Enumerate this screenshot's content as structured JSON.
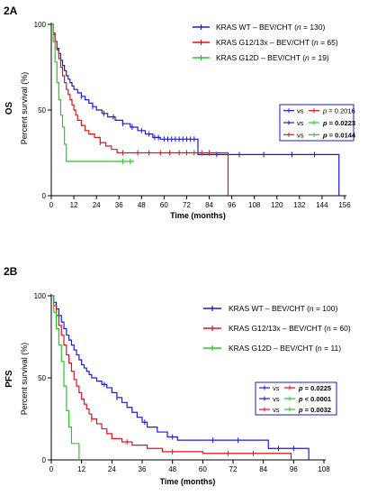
{
  "colors": {
    "series1": "#1a1adc",
    "series2": "#e0141e",
    "series3": "#22cc22",
    "axis": "#000000",
    "compare_box": "#1a1adc"
  },
  "chart_data": [
    {
      "type": "line",
      "step": true,
      "panel_label": "2A",
      "title": "",
      "outcome_label": "OS",
      "xlabel": "Time (months)",
      "ylabel": "Percent survival (%)",
      "xlim": [
        0,
        156
      ],
      "ylim": [
        0,
        100
      ],
      "xticks": [
        0,
        12,
        24,
        36,
        48,
        60,
        72,
        84,
        96,
        108,
        120,
        132,
        144,
        156
      ],
      "yticks": [
        0,
        50,
        100
      ],
      "legend_position": "top-right",
      "series": [
        {
          "name_prefix": "KRAS WT – BEV/CHT  (",
          "n_label": "n",
          "n_value": " = 130)",
          "color": "#1a1adc",
          "points": [
            [
              0,
              100
            ],
            [
              1,
              94
            ],
            [
              2,
              90
            ],
            [
              3,
              86
            ],
            [
              4,
              83
            ],
            [
              5,
              79
            ],
            [
              6,
              76
            ],
            [
              7,
              73
            ],
            [
              8,
              70
            ],
            [
              9,
              68
            ],
            [
              10,
              66
            ],
            [
              11,
              64
            ],
            [
              12,
              62
            ],
            [
              14,
              60
            ],
            [
              16,
              58
            ],
            [
              18,
              56
            ],
            [
              20,
              54
            ],
            [
              22,
              52
            ],
            [
              24,
              50
            ],
            [
              27,
              48
            ],
            [
              30,
              46
            ],
            [
              34,
              44
            ],
            [
              38,
              42
            ],
            [
              42,
              40
            ],
            [
              46,
              38
            ],
            [
              50,
              36
            ],
            [
              54,
              34
            ],
            [
              58,
              33
            ],
            [
              66,
              33
            ],
            [
              76,
              33
            ],
            [
              78,
              24
            ],
            [
              153,
              24
            ],
            [
              153,
              0
            ]
          ],
          "censor_x": [
            16,
            22,
            28,
            33,
            38,
            43,
            48,
            52,
            55,
            57,
            60,
            62,
            64,
            66,
            68,
            70,
            72,
            74,
            76,
            88,
            100,
            113,
            128,
            140
          ]
        },
        {
          "name_prefix": "KRAS G12/13x – BEV/CHT (",
          "n_label": "n",
          "n_value": " = 65)",
          "color": "#e0141e",
          "points": [
            [
              0,
              100
            ],
            [
              1,
              95
            ],
            [
              2,
              90
            ],
            [
              3,
              85
            ],
            [
              4,
              80
            ],
            [
              5,
              75
            ],
            [
              6,
              70
            ],
            [
              7,
              66
            ],
            [
              8,
              62
            ],
            [
              9,
              59
            ],
            [
              10,
              56
            ],
            [
              11,
              53
            ],
            [
              12,
              50
            ],
            [
              13,
              47
            ],
            [
              14,
              44
            ],
            [
              16,
              41
            ],
            [
              18,
              38
            ],
            [
              20,
              36
            ],
            [
              23,
              34
            ],
            [
              26,
              31
            ],
            [
              29,
              29
            ],
            [
              32,
              27
            ],
            [
              35,
              25
            ],
            [
              94,
              25
            ],
            [
              94,
              0
            ]
          ],
          "censor_x": [
            26,
            38,
            46,
            52,
            58,
            63,
            68,
            72,
            76,
            80,
            84
          ]
        },
        {
          "name_prefix": "KRAS G12D – BEV/CHT (",
          "n_label": "n",
          "n_value": " = 19)",
          "color": "#22cc22",
          "points": [
            [
              0,
              100
            ],
            [
              1,
              90
            ],
            [
              2,
              78
            ],
            [
              3,
              66
            ],
            [
              4,
              56
            ],
            [
              5,
              47
            ],
            [
              6,
              40
            ],
            [
              7,
              30
            ],
            [
              8,
              20
            ],
            [
              44,
              20
            ]
          ],
          "censor_x": [
            38,
            42
          ]
        }
      ],
      "comparisons": [
        {
          "left": "#1a1adc",
          "vs": "vs",
          "right": "#e0141e",
          "p_label": "p",
          "p_value": " = 0.2016",
          "bold": false
        },
        {
          "left": "#1a1adc",
          "vs": "vs",
          "right": "#22cc22",
          "p_label": "p",
          "p_value": " = 0.0223",
          "bold": true
        },
        {
          "left": "#e0141e",
          "vs": "vs",
          "right": "#22cc22",
          "p_label": "p",
          "p_value": " = 0.0144",
          "bold": true
        }
      ]
    },
    {
      "type": "line",
      "step": true,
      "panel_label": "2B",
      "title": "",
      "outcome_label": "PFS",
      "xlabel": "Time (months)",
      "ylabel": "Percent survival (%)",
      "xlim": [
        0,
        108
      ],
      "ylim": [
        0,
        100
      ],
      "xticks": [
        0,
        12,
        24,
        36,
        48,
        60,
        72,
        84,
        96,
        108
      ],
      "yticks": [
        0,
        50,
        100
      ],
      "legend_position": "top-right",
      "series": [
        {
          "name": "KRAS WT – BEV/CHT (n = 100)",
          "color": "#1a1adc",
          "points": [
            [
              0,
              100
            ],
            [
              1,
              96
            ],
            [
              2,
              92
            ],
            [
              3,
              88
            ],
            [
              4,
              84
            ],
            [
              5,
              80
            ],
            [
              6,
              76
            ],
            [
              7,
              73
            ],
            [
              8,
              70
            ],
            [
              9,
              67
            ],
            [
              10,
              64
            ],
            [
              11,
              61
            ],
            [
              12,
              58
            ],
            [
              13,
              56
            ],
            [
              14,
              54
            ],
            [
              15,
              52
            ],
            [
              16,
              50
            ],
            [
              18,
              48
            ],
            [
              20,
              46
            ],
            [
              22,
              44
            ],
            [
              24,
              41
            ],
            [
              26,
              38
            ],
            [
              28,
              35
            ],
            [
              30,
              32
            ],
            [
              32,
              29
            ],
            [
              34,
              26
            ],
            [
              36,
              23
            ],
            [
              38,
              20
            ],
            [
              42,
              17
            ],
            [
              46,
              14
            ],
            [
              50,
              12
            ],
            [
              86,
              12
            ],
            [
              86,
              7
            ],
            [
              102,
              7
            ],
            [
              102,
              0
            ]
          ],
          "censor_x": [
            21,
            26,
            37,
            48,
            64,
            74,
            90,
            96
          ]
        },
        {
          "name": "KRAS G12/13x – BEV/CHT (n = 60)",
          "color": "#e0141e",
          "points": [
            [
              0,
              100
            ],
            [
              1,
              94
            ],
            [
              2,
              88
            ],
            [
              3,
              82
            ],
            [
              4,
              76
            ],
            [
              5,
              70
            ],
            [
              6,
              64
            ],
            [
              7,
              59
            ],
            [
              8,
              54
            ],
            [
              9,
              49
            ],
            [
              10,
              45
            ],
            [
              11,
              41
            ],
            [
              12,
              37
            ],
            [
              13,
              34
            ],
            [
              14,
              31
            ],
            [
              15,
              28
            ],
            [
              16,
              25
            ],
            [
              18,
              22
            ],
            [
              20,
              19
            ],
            [
              22,
              16
            ],
            [
              24,
              13
            ],
            [
              28,
              11
            ],
            [
              32,
              9
            ],
            [
              38,
              7
            ],
            [
              44,
              5
            ],
            [
              60,
              4
            ],
            [
              95,
              4
            ],
            [
              95,
              0
            ]
          ],
          "censor_x": [
            16,
            30,
            48,
            70,
            80
          ]
        },
        {
          "name": "KRAS G12D – BEV/CHT (n = 11)",
          "color": "#22cc22",
          "points": [
            [
              0,
              100
            ],
            [
              1,
              90
            ],
            [
              2,
              80
            ],
            [
              3,
              70
            ],
            [
              4,
              60
            ],
            [
              5,
              45
            ],
            [
              6,
              30
            ],
            [
              7,
              20
            ],
            [
              8,
              10
            ],
            [
              11,
              10
            ],
            [
              11,
              0
            ]
          ],
          "censor_x": []
        }
      ],
      "comparisons": [
        {
          "left": "#1a1adc",
          "vs": "vs",
          "right": "#e0141e",
          "p_label": "p",
          "p_value": " = 0.0225",
          "bold": true
        },
        {
          "left": "#1a1adc",
          "vs": "vs",
          "right": "#22cc22",
          "p_label": "p",
          "p_value": " < 0.0001",
          "bold": true
        },
        {
          "left": "#e0141e",
          "vs": "vs",
          "right": "#22cc22",
          "p_label": "p",
          "p_value": " = 0.0032",
          "bold": true
        }
      ]
    }
  ]
}
